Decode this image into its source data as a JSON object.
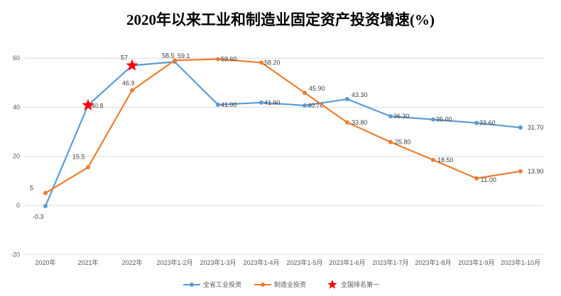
{
  "chart_data": {
    "type": "line",
    "title": "2020年以来工业和制造业固定资产投资增速(%)",
    "categories": [
      "2020年",
      "2021年",
      "2022年",
      "2023年1-2月",
      "2023年1-3月",
      "2023年1-4月",
      "2023年1-5月",
      "2023年1-6月",
      "2023年1-7月",
      "2023年1-8月",
      "2023年1-9月",
      "2023年1-10月"
    ],
    "ylim": [
      -20,
      60
    ],
    "yticks": [
      -20,
      0,
      20,
      40,
      60
    ],
    "grid": true,
    "legend_placement": "bottom",
    "series": [
      {
        "name": "全省工业投资",
        "color": "#5B9BD5",
        "values": [
          -0.3,
          40.8,
          57,
          58.5,
          41.0,
          41.9,
          40.7,
          43.3,
          36.3,
          35.0,
          33.6,
          31.7
        ],
        "labels": [
          "-0.3",
          "40.8",
          "57",
          "58.5",
          "41.00",
          "41.90",
          "40.70",
          "43.30",
          "36.30",
          "35.00",
          "33.60",
          "31.70"
        ]
      },
      {
        "name": "制造业投资",
        "color": "#ED7D31",
        "values": [
          5,
          15.5,
          46.9,
          59.1,
          59.6,
          58.2,
          45.9,
          33.8,
          25.8,
          18.5,
          11.0,
          13.9
        ],
        "labels": [
          "5",
          "15.5",
          "46.9",
          "59.1",
          "59.60",
          "58.20",
          "45.90",
          "33.80",
          "25.80",
          "18.50",
          "11.00",
          "13.90"
        ]
      }
    ],
    "markers": {
      "name": "全国排名第一",
      "color": "#FF0000",
      "series": "全省工业投资",
      "categories": [
        "2021年",
        "2022年"
      ]
    }
  }
}
